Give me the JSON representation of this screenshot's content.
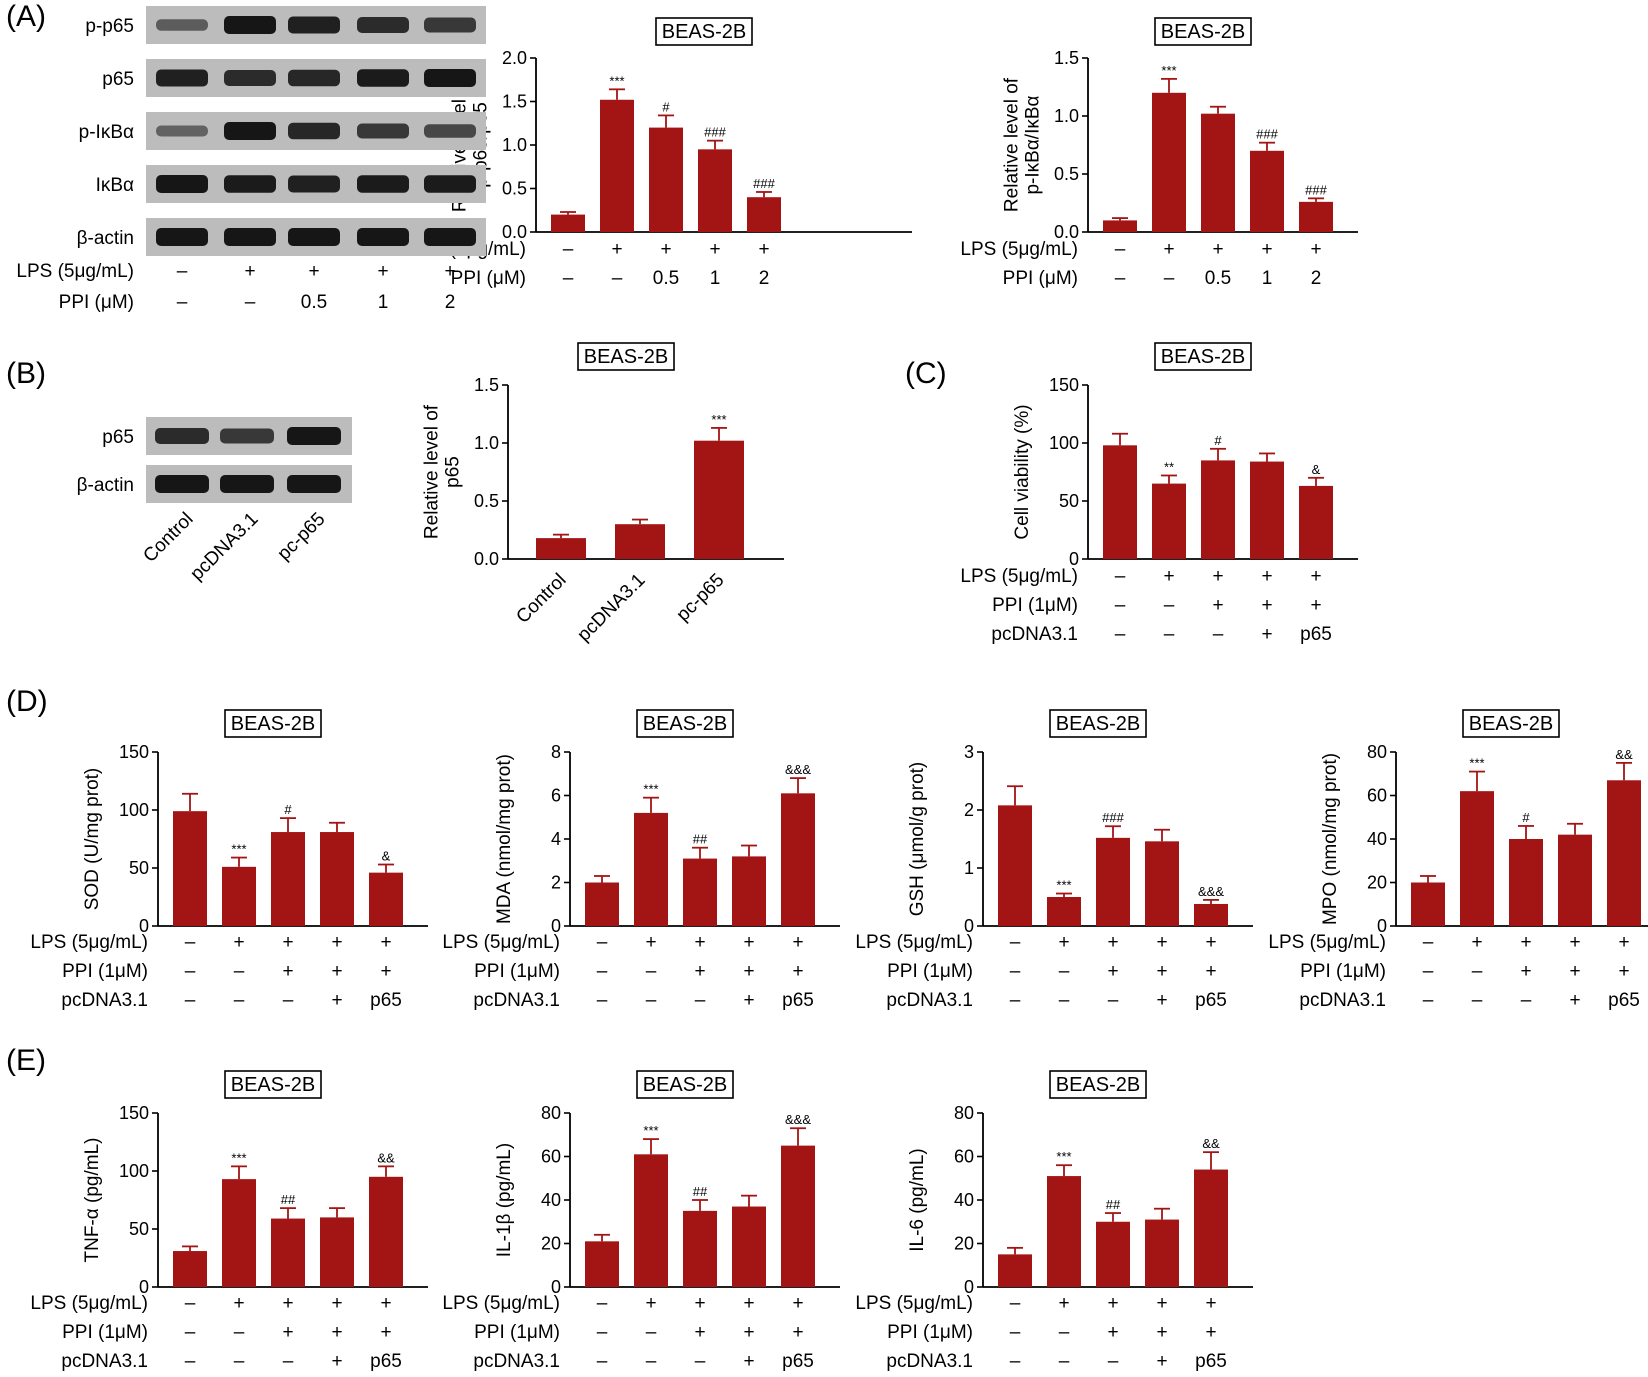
{
  "colors": {
    "bar": "#a31515",
    "text": "#000000",
    "blot_bg": "#bcbcbc",
    "band": "#161616"
  },
  "panel_labels": [
    "(A)",
    "(B)",
    "(C)",
    "(D)",
    "(E)"
  ],
  "blots": [
    {
      "rows": [
        "p-p65",
        "p65",
        "p-IκBα",
        "IκBα",
        "β-actin"
      ],
      "lanes": 5,
      "intensity": [
        [
          0.35,
          1.0,
          0.9,
          0.8,
          0.7
        ],
        [
          0.9,
          0.8,
          0.85,
          0.95,
          1.0
        ],
        [
          0.3,
          1.0,
          0.85,
          0.7,
          0.55
        ],
        [
          1.0,
          0.95,
          0.9,
          0.95,
          0.95
        ],
        [
          1.0,
          1.0,
          1.0,
          1.0,
          1.0
        ]
      ],
      "conditions": [
        {
          "label": "LPS (5μg/mL)",
          "values": [
            "–",
            "+",
            "+",
            "+",
            "+"
          ]
        },
        {
          "label": "PPI (μM)",
          "values": [
            "–",
            "–",
            "0.5",
            "1",
            "2"
          ]
        }
      ]
    },
    {
      "rows": [
        "p65",
        "β-actin"
      ],
      "lanes": 3,
      "intensity": [
        [
          0.8,
          0.7,
          1.0
        ],
        [
          1.0,
          1.0,
          1.0
        ]
      ],
      "lane_labels": [
        "Control",
        "pcDNA3.1",
        "pc-p65"
      ]
    }
  ],
  "chart_data": [
    {
      "type": "bar",
      "panel": "A",
      "title": "BEAS-2B",
      "ylabel": [
        "Relative level of",
        "p-p65/p65"
      ],
      "ylim": [
        0,
        2.0
      ],
      "yticks": [
        "0.0",
        "0.5",
        "1.0",
        "1.5",
        "2.0"
      ],
      "values": [
        0.2,
        1.52,
        1.2,
        0.95,
        0.4
      ],
      "errors": [
        0.03,
        0.12,
        0.14,
        0.1,
        0.06
      ],
      "sig": [
        "",
        "***",
        "#",
        "###",
        "###"
      ],
      "conditions": [
        {
          "label": "LPS (5μg/mL)",
          "values": [
            "–",
            "+",
            "+",
            "+",
            "+"
          ]
        },
        {
          "label": "PPI (μM)",
          "values": [
            "–",
            "–",
            "0.5",
            "1",
            "2"
          ]
        }
      ]
    },
    {
      "type": "bar",
      "panel": "A",
      "title": "BEAS-2B",
      "ylabel": [
        "Relative level of",
        "p-IκBα/IκBα"
      ],
      "ylim": [
        0,
        1.5
      ],
      "yticks": [
        "0.0",
        "0.5",
        "1.0",
        "1.5"
      ],
      "values": [
        0.1,
        1.2,
        1.02,
        0.7,
        0.26
      ],
      "errors": [
        0.02,
        0.12,
        0.06,
        0.07,
        0.03
      ],
      "sig": [
        "",
        "***",
        "",
        "###",
        "###"
      ],
      "conditions": [
        {
          "label": "LPS (5μg/mL)",
          "values": [
            "–",
            "+",
            "+",
            "+",
            "+"
          ]
        },
        {
          "label": "PPI (μM)",
          "values": [
            "–",
            "–",
            "0.5",
            "1",
            "2"
          ]
        }
      ]
    },
    {
      "type": "bar",
      "panel": "B",
      "title": "BEAS-2B",
      "ylabel": [
        "Relative level of",
        "p65"
      ],
      "ylim": [
        0,
        1.5
      ],
      "yticks": [
        "0.0",
        "0.5",
        "1.0",
        "1.5"
      ],
      "values": [
        0.18,
        0.3,
        1.02
      ],
      "errors": [
        0.03,
        0.04,
        0.11
      ],
      "sig": [
        "",
        "",
        "***"
      ],
      "categories": [
        "Control",
        "pcDNA3.1",
        "pc-p65"
      ]
    },
    {
      "type": "bar",
      "panel": "C",
      "title": "BEAS-2B",
      "ylabel": [
        "Cell viability (%)"
      ],
      "ylim": [
        0,
        150
      ],
      "yticks": [
        "0",
        "50",
        "100",
        "150"
      ],
      "values": [
        98,
        65,
        85,
        84,
        63
      ],
      "errors": [
        10,
        7,
        10,
        7,
        7
      ],
      "sig": [
        "",
        "**",
        "#",
        "",
        "&"
      ],
      "conditions": [
        {
          "label": "LPS (5μg/mL)",
          "values": [
            "–",
            "+",
            "+",
            "+",
            "+"
          ]
        },
        {
          "label": "PPI (1μM)",
          "values": [
            "–",
            "–",
            "+",
            "+",
            "+"
          ]
        },
        {
          "label": "pcDNA3.1",
          "values": [
            "–",
            "–",
            "–",
            "+",
            "p65"
          ]
        }
      ]
    },
    {
      "type": "bar",
      "panel": "D",
      "title": "BEAS-2B",
      "ylabel": [
        "SOD (U/mg prot)"
      ],
      "ylim": [
        0,
        150
      ],
      "yticks": [
        "0",
        "50",
        "100",
        "150"
      ],
      "values": [
        99,
        51,
        81,
        81,
        46
      ],
      "errors": [
        15,
        8,
        12,
        8,
        7
      ],
      "sig": [
        "",
        "***",
        "#",
        "",
        "&"
      ],
      "conditions": [
        {
          "label": "LPS (5μg/mL)",
          "values": [
            "–",
            "+",
            "+",
            "+",
            "+"
          ]
        },
        {
          "label": "PPI (1μM)",
          "values": [
            "–",
            "–",
            "+",
            "+",
            "+"
          ]
        },
        {
          "label": "pcDNA3.1",
          "values": [
            "–",
            "–",
            "–",
            "+",
            "p65"
          ]
        }
      ]
    },
    {
      "type": "bar",
      "panel": "D",
      "title": "BEAS-2B",
      "ylabel": [
        "MDA (nmol/mg prot)"
      ],
      "ylim": [
        0,
        8
      ],
      "yticks": [
        "0",
        "2",
        "4",
        "6",
        "8"
      ],
      "values": [
        2.0,
        5.2,
        3.1,
        3.2,
        6.1
      ],
      "errors": [
        0.3,
        0.7,
        0.5,
        0.5,
        0.7
      ],
      "sig": [
        "",
        "***",
        "##",
        "",
        "&&&"
      ],
      "conditions": [
        {
          "label": "LPS (5μg/mL)",
          "values": [
            "–",
            "+",
            "+",
            "+",
            "+"
          ]
        },
        {
          "label": "PPI (1μM)",
          "values": [
            "–",
            "–",
            "+",
            "+",
            "+"
          ]
        },
        {
          "label": "pcDNA3.1",
          "values": [
            "–",
            "–",
            "–",
            "+",
            "p65"
          ]
        }
      ]
    },
    {
      "type": "bar",
      "panel": "D",
      "title": "BEAS-2B",
      "ylabel": [
        "GSH (μmol/g prot)"
      ],
      "ylim": [
        0,
        3
      ],
      "yticks": [
        "0",
        "1",
        "2",
        "3"
      ],
      "values": [
        2.08,
        0.5,
        1.52,
        1.46,
        0.38
      ],
      "errors": [
        0.33,
        0.06,
        0.2,
        0.2,
        0.07
      ],
      "sig": [
        "",
        "***",
        "###",
        "",
        "&&&"
      ],
      "conditions": [
        {
          "label": "LPS (5μg/mL)",
          "values": [
            "–",
            "+",
            "+",
            "+",
            "+"
          ]
        },
        {
          "label": "PPI (1μM)",
          "values": [
            "–",
            "–",
            "+",
            "+",
            "+"
          ]
        },
        {
          "label": "pcDNA3.1",
          "values": [
            "–",
            "–",
            "–",
            "+",
            "p65"
          ]
        }
      ]
    },
    {
      "type": "bar",
      "panel": "D",
      "title": "BEAS-2B",
      "ylabel": [
        "MPO (nmol/mg prot)"
      ],
      "ylim": [
        0,
        80
      ],
      "yticks": [
        "0",
        "20",
        "40",
        "60",
        "80"
      ],
      "values": [
        20,
        62,
        40,
        42,
        67
      ],
      "errors": [
        3,
        9,
        6,
        5,
        8
      ],
      "sig": [
        "",
        "***",
        "#",
        "",
        "&&"
      ],
      "conditions": [
        {
          "label": "LPS (5μg/mL)",
          "values": [
            "–",
            "+",
            "+",
            "+",
            "+"
          ]
        },
        {
          "label": "PPI (1μM)",
          "values": [
            "–",
            "–",
            "+",
            "+",
            "+"
          ]
        },
        {
          "label": "pcDNA3.1",
          "values": [
            "–",
            "–",
            "–",
            "+",
            "p65"
          ]
        }
      ]
    },
    {
      "type": "bar",
      "panel": "E",
      "title": "BEAS-2B",
      "ylabel": [
        "TNF-α (pg/mL)"
      ],
      "ylim": [
        0,
        150
      ],
      "yticks": [
        "0",
        "50",
        "100",
        "150"
      ],
      "values": [
        31,
        93,
        59,
        60,
        95
      ],
      "errors": [
        4,
        11,
        9,
        8,
        9
      ],
      "sig": [
        "",
        "***",
        "##",
        "",
        "&&"
      ],
      "conditions": [
        {
          "label": "LPS (5μg/mL)",
          "values": [
            "–",
            "+",
            "+",
            "+",
            "+"
          ]
        },
        {
          "label": "PPI (1μM)",
          "values": [
            "–",
            "–",
            "+",
            "+",
            "+"
          ]
        },
        {
          "label": "pcDNA3.1",
          "values": [
            "–",
            "–",
            "–",
            "+",
            "p65"
          ]
        }
      ]
    },
    {
      "type": "bar",
      "panel": "E",
      "title": "BEAS-2B",
      "ylabel": [
        "IL-1β (pg/mL)"
      ],
      "ylim": [
        0,
        80
      ],
      "yticks": [
        "0",
        "20",
        "40",
        "60",
        "80"
      ],
      "values": [
        21,
        61,
        35,
        37,
        65
      ],
      "errors": [
        3,
        7,
        5,
        5,
        8
      ],
      "sig": [
        "",
        "***",
        "##",
        "",
        "&&&"
      ],
      "conditions": [
        {
          "label": "LPS (5μg/mL)",
          "values": [
            "–",
            "+",
            "+",
            "+",
            "+"
          ]
        },
        {
          "label": "PPI (1μM)",
          "values": [
            "–",
            "–",
            "+",
            "+",
            "+"
          ]
        },
        {
          "label": "pcDNA3.1",
          "values": [
            "–",
            "–",
            "–",
            "+",
            "p65"
          ]
        }
      ]
    },
    {
      "type": "bar",
      "panel": "E",
      "title": "BEAS-2B",
      "ylabel": [
        "IL-6 (pg/mL)"
      ],
      "ylim": [
        0,
        80
      ],
      "yticks": [
        "0",
        "20",
        "40",
        "60",
        "80"
      ],
      "values": [
        15,
        51,
        30,
        31,
        54
      ],
      "errors": [
        3,
        5,
        4,
        5,
        8
      ],
      "sig": [
        "",
        "***",
        "##",
        "",
        "&&"
      ],
      "conditions": [
        {
          "label": "LPS (5μg/mL)",
          "values": [
            "–",
            "+",
            "+",
            "+",
            "+"
          ]
        },
        {
          "label": "PPI (1μM)",
          "values": [
            "–",
            "–",
            "+",
            "+",
            "+"
          ]
        },
        {
          "label": "pcDNA3.1",
          "values": [
            "–",
            "–",
            "–",
            "+",
            "p65"
          ]
        }
      ]
    }
  ]
}
